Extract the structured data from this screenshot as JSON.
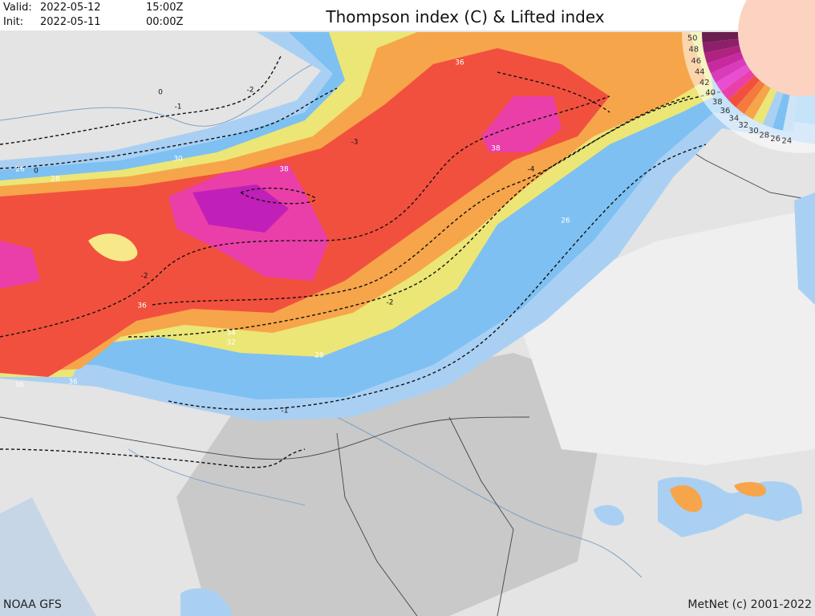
{
  "header": {
    "valid_label": "Valid:",
    "valid_date": "2022-05-12",
    "valid_time": "15:00Z",
    "init_label": "Init:",
    "init_date": "2022-05-11",
    "init_time": "00:00Z",
    "title": "Thompson index (C) & Lifted index"
  },
  "legend": {
    "labels": [
      "50",
      "48",
      "46",
      "44",
      "42",
      "40",
      "38",
      "36",
      "34",
      "32",
      "30",
      "28",
      "26",
      "24"
    ]
  },
  "contour_labels": [
    "36",
    "38",
    "38",
    "26",
    "28",
    "30",
    "26",
    "36",
    "34",
    "32",
    "28",
    "36",
    "36",
    "0",
    "0",
    "-1",
    "-2",
    "-3",
    "-4",
    "-2",
    "-2",
    "-1"
  ],
  "footer": {
    "source": "NOAA GFS",
    "credit": "MetNet (c) 2001-2022"
  }
}
